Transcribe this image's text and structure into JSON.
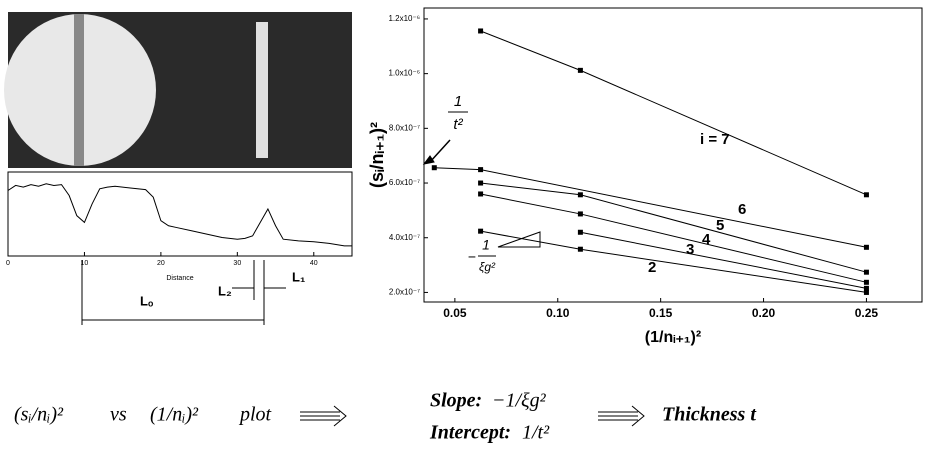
{
  "chart_data": [
    {
      "type": "line",
      "xlabel": "Distance",
      "x": [
        0,
        1,
        2,
        3,
        4,
        5,
        6,
        7,
        8,
        9,
        10,
        11,
        12,
        13,
        14,
        16,
        18,
        19,
        20,
        21,
        22,
        24,
        26,
        28,
        30,
        31,
        32,
        33,
        34,
        35,
        36,
        38,
        40,
        42,
        44,
        45
      ],
      "values": [
        78,
        84,
        82,
        85,
        83,
        86,
        84,
        85,
        72,
        48,
        40,
        62,
        80,
        82,
        83,
        81,
        79,
        70,
        42,
        36,
        34,
        30,
        26,
        22,
        20,
        21,
        24,
        40,
        56,
        36,
        20,
        18,
        17,
        15,
        12,
        12
      ],
      "color": "#000000",
      "xlim": [
        0,
        45
      ],
      "ylim": [
        0,
        100
      ],
      "xticks": [
        0,
        10,
        20,
        30,
        40
      ],
      "annotations": [
        "L₂",
        "L₁",
        "Lₒ"
      ]
    },
    {
      "type": "line",
      "xlabel": "(1/nᵢ₊₁)²",
      "ylabel": "(sᵢ/nᵢ₊₁)²",
      "xlim": [
        0.035,
        0.277
      ],
      "ylim": [
        1.65e-07,
        1.24e-06
      ],
      "xticks": [
        0.05,
        {
          "value": 0.1,
          "label": "0.10"
        },
        0.15,
        {
          "value": 0.2,
          "label": "0.20"
        },
        0.25
      ],
      "yticks": [
        {
          "value": 2e-07,
          "label": "2.0x10⁻⁷"
        },
        {
          "value": 4e-07,
          "label": "4.0x10⁻⁷"
        },
        {
          "value": 6e-07,
          "label": "6.0x10⁻⁷"
        },
        {
          "value": 8e-07,
          "label": "8.0x10⁻⁷"
        },
        {
          "value": 1e-06,
          "label": "1.0x10⁻⁶"
        },
        {
          "value": 1.2e-06,
          "label": "1.2x10⁻⁶"
        }
      ],
      "series": [
        {
          "name": "i = 7",
          "color": "#000000",
          "x": [
            0.0625,
            0.111,
            0.25
          ],
          "values": [
            1.156e-06,
            1.012e-06,
            5.57e-07
          ]
        },
        {
          "name": "6",
          "color": "#000000",
          "x": [
            0.04,
            0.0625,
            0.25
          ],
          "values": [
            6.56e-07,
            6.49e-07,
            3.65e-07
          ]
        },
        {
          "name": "5",
          "color": "#000000",
          "x": [
            0.0625,
            0.111,
            0.25
          ],
          "values": [
            6e-07,
            5.57e-07,
            2.74e-07
          ]
        },
        {
          "name": "4",
          "color": "#000000",
          "x": [
            0.0625,
            0.111,
            0.25
          ],
          "values": [
            5.6e-07,
            4.87e-07,
            2.37e-07
          ]
        },
        {
          "name": "3",
          "color": "#000000",
          "x": [
            0.111,
            0.25
          ],
          "values": [
            4.2e-07,
            2.15e-07
          ]
        },
        {
          "name": "2",
          "color": "#000000",
          "x": [
            0.0625,
            0.111,
            0.25
          ],
          "values": [
            4.24e-07,
            3.58e-07,
            2e-07
          ]
        }
      ],
      "annotations": {
        "intercept": [
          "1",
          "t²"
        ],
        "slope": [
          "−",
          "1",
          "ξg²"
        ]
      }
    }
  ],
  "formula": {
    "lhs": [
      "(sᵢ/nᵢ)²",
      "vs",
      "(1/nᵢ)²",
      "plot"
    ],
    "slope_label": "Slope:",
    "slope": "−1/ξg²",
    "intercept_label": "Intercept:",
    "intercept": "1/t²",
    "result": "Thickness  t"
  }
}
